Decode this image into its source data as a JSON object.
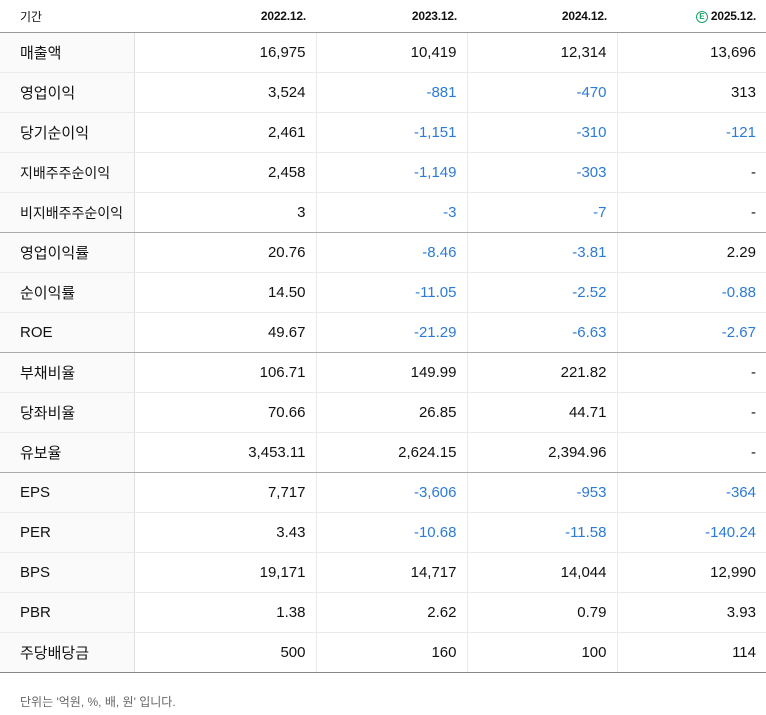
{
  "header": {
    "label": "기간",
    "years": [
      "2022.12.",
      "2023.12.",
      "2024.12.",
      "2025.12."
    ],
    "estimate_badge": "E"
  },
  "rows": [
    {
      "label": "매출액",
      "values": [
        "16,975",
        "10,419",
        "12,314",
        "13,696"
      ]
    },
    {
      "label": "영업이익",
      "values": [
        "3,524",
        "-881",
        "-470",
        "313"
      ]
    },
    {
      "label": "당기순이익",
      "values": [
        "2,461",
        "-1,151",
        "-310",
        "-121"
      ]
    },
    {
      "label": "지배주주순이익",
      "values": [
        "2,458",
        "-1,149",
        "-303",
        "-"
      ]
    },
    {
      "label": "비지배주주순이익",
      "values": [
        "3",
        "-3",
        "-7",
        "-"
      ]
    },
    {
      "label": "영업이익률",
      "values": [
        "20.76",
        "-8.46",
        "-3.81",
        "2.29"
      ]
    },
    {
      "label": "순이익률",
      "values": [
        "14.50",
        "-11.05",
        "-2.52",
        "-0.88"
      ]
    },
    {
      "label": "ROE",
      "values": [
        "49.67",
        "-21.29",
        "-6.63",
        "-2.67"
      ]
    },
    {
      "label": "부채비율",
      "values": [
        "106.71",
        "149.99",
        "221.82",
        "-"
      ]
    },
    {
      "label": "당좌비율",
      "values": [
        "70.66",
        "26.85",
        "44.71",
        "-"
      ]
    },
    {
      "label": "유보율",
      "values": [
        "3,453.11",
        "2,624.15",
        "2,394.96",
        "-"
      ]
    },
    {
      "label": "EPS",
      "values": [
        "7,717",
        "-3,606",
        "-953",
        "-364"
      ]
    },
    {
      "label": "PER",
      "values": [
        "3.43",
        "-10.68",
        "-11.58",
        "-140.24"
      ]
    },
    {
      "label": "BPS",
      "values": [
        "19,171",
        "14,717",
        "14,044",
        "12,990"
      ]
    },
    {
      "label": "PBR",
      "values": [
        "1.38",
        "2.62",
        "0.79",
        "3.93"
      ]
    },
    {
      "label": "주당배당금",
      "values": [
        "500",
        "160",
        "100",
        "114"
      ]
    }
  ],
  "footer": {
    "note": "단위는 '억원, %, 배, 원' 입니다."
  },
  "colors": {
    "negative": "#2c7bd6",
    "badge": "#1aa36a"
  }
}
